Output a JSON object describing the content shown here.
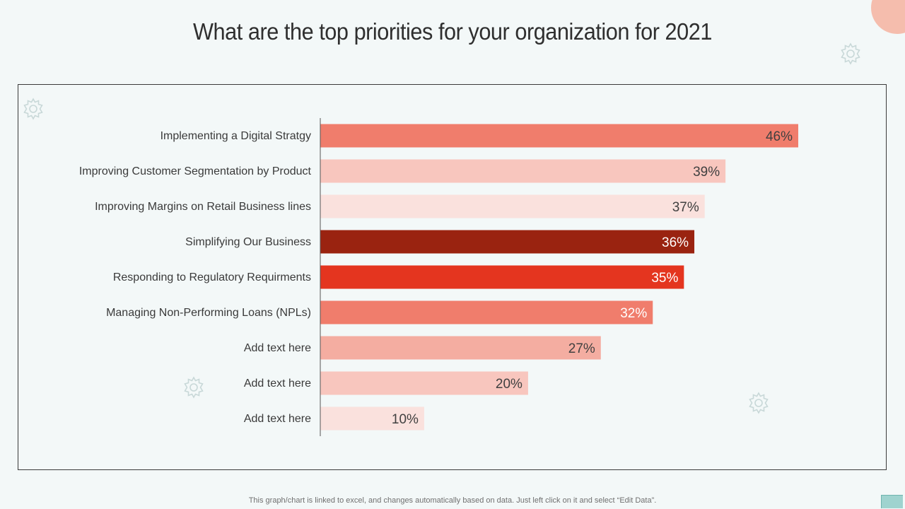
{
  "title": "What are the top priorities for your organization for 2021",
  "footnote": "This graph/chart is linked to excel,  and changes automatically based on data. Just left click on it and select “Edit Data”.",
  "colors": {
    "background": "#f3f8f8",
    "accent": "#f27c6a",
    "gear": "#c8d8d8"
  },
  "chart_data": {
    "type": "bar",
    "orientation": "horizontal",
    "title": "",
    "xlabel": "",
    "ylabel": "",
    "xlim": [
      0,
      50
    ],
    "grid": false,
    "categories": [
      "Implementing a Digital Stratgy",
      "Improving Customer Segmentation by Product",
      "Improving Margins on Retail Business lines",
      "Simplifying Our Business",
      "Responding to Regulatory Requirments",
      "Managing Non-Performing Loans (NPLs)",
      "Add text here",
      "Add text here",
      "Add text here"
    ],
    "values": [
      46,
      39,
      37,
      36,
      35,
      32,
      27,
      20,
      10
    ],
    "labels": [
      "46%",
      "39%",
      "37%",
      "36%",
      "35%",
      "32%",
      "27%",
      "20%",
      "10%"
    ],
    "bar_colors": [
      "#f07d6c",
      "#f8c6be",
      "#fae1dd",
      "#9a2310",
      "#e4351f",
      "#f07d6c",
      "#f4ada1",
      "#f8c6be",
      "#fae1dd"
    ],
    "label_colors": [
      "#404040",
      "#404040",
      "#404040",
      "#ffffff",
      "#ffffff",
      "#ffffff",
      "#404040",
      "#404040",
      "#404040"
    ]
  }
}
